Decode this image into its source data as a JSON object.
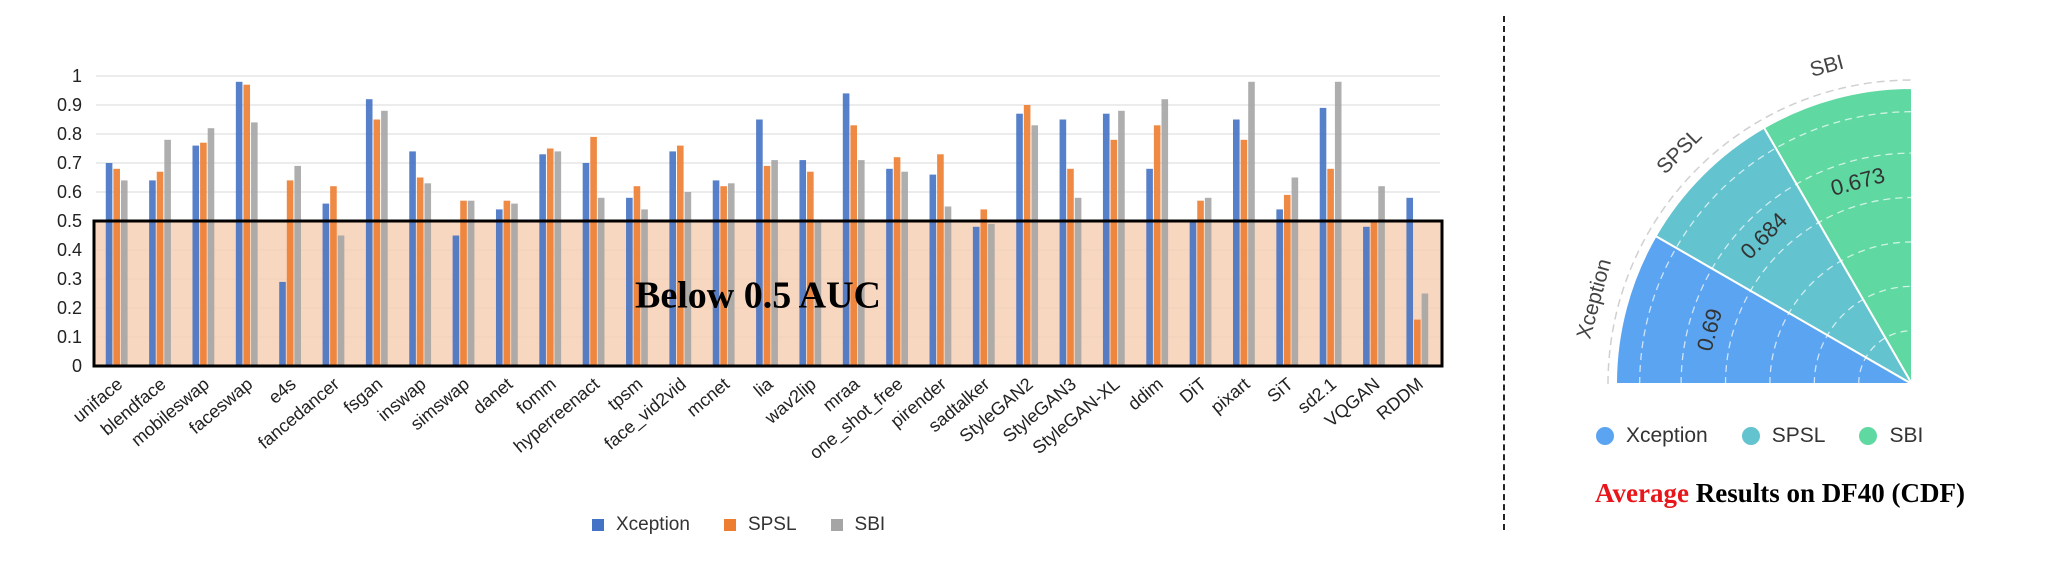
{
  "colors": {
    "Xception": "#4472c4",
    "SPSL": "#ed7d31",
    "SBI": "#a5a5a5",
    "highlight_fill": "#f6cdb0",
    "title_accent": "#e8161b"
  },
  "chart_data": [
    {
      "type": "bar",
      "categories": [
        "uniface",
        "blendface",
        "mobileswap",
        "faceswap",
        "e4s",
        "fancedancer",
        "fsgan",
        "inswap",
        "simswap",
        "danet",
        "fomm",
        "hyperreenact",
        "tpsm",
        "face_vid2vid",
        "mcnet",
        "lia",
        "wav2lip",
        "mraa",
        "one_shot_free",
        "pirender",
        "sadtalker",
        "StyleGAN2",
        "StyleGAN3",
        "StyleGAN-XL",
        "ddim",
        "DiT",
        "pixart",
        "SiT",
        "sd2.1",
        "VQGAN",
        "RDDM"
      ],
      "series": [
        {
          "name": "Xception",
          "color": "#4472c4",
          "values": [
            0.7,
            0.64,
            0.76,
            0.98,
            0.29,
            0.56,
            0.92,
            0.74,
            0.45,
            0.54,
            0.73,
            0.7,
            0.58,
            0.74,
            0.64,
            0.85,
            0.71,
            0.94,
            0.68,
            0.66,
            0.48,
            0.87,
            0.85,
            0.87,
            0.68,
            0.5,
            0.85,
            0.54,
            0.89,
            0.48,
            0.58
          ]
        },
        {
          "name": "SPSL",
          "color": "#ed7d31",
          "values": [
            0.68,
            0.67,
            0.77,
            0.97,
            0.64,
            0.62,
            0.85,
            0.65,
            0.57,
            0.57,
            0.75,
            0.79,
            0.62,
            0.76,
            0.62,
            0.69,
            0.67,
            0.83,
            0.72,
            0.73,
            0.54,
            0.9,
            0.68,
            0.78,
            0.83,
            0.57,
            0.78,
            0.59,
            0.68,
            0.5,
            0.16
          ]
        },
        {
          "name": "SBI",
          "color": "#a5a5a5",
          "values": [
            0.64,
            0.78,
            0.82,
            0.84,
            0.69,
            0.45,
            0.88,
            0.63,
            0.57,
            0.56,
            0.74,
            0.58,
            0.54,
            0.6,
            0.63,
            0.71,
            0.5,
            0.71,
            0.67,
            0.55,
            0.49,
            0.83,
            0.58,
            0.88,
            0.92,
            0.58,
            0.98,
            0.65,
            0.98,
            0.62,
            0.25
          ]
        }
      ],
      "y_ticks": [
        "0",
        "0.1",
        "0.2",
        "0.3",
        "0.4",
        "0.5",
        "0.6",
        "0.7",
        "0.8",
        "0.9",
        "1"
      ],
      "ylim": [
        0,
        1
      ],
      "grid": true,
      "legend_position": "bottom",
      "highlight_region": {
        "y_from": 0,
        "y_to": 0.5,
        "label": "Below 0.5 AUC"
      }
    },
    {
      "type": "polar-bar",
      "title_accent": "Average",
      "title_rest": " Results on DF40 (CDF)",
      "series": [
        {
          "name": "Xception",
          "value": 0.69,
          "label": "0.69",
          "color": "#5ba4f1"
        },
        {
          "name": "SPSL",
          "value": 0.684,
          "label": "0.684",
          "color": "#63c3cf"
        },
        {
          "name": "SBI",
          "value": 0.673,
          "label": "0.673",
          "color": "#5fd8a2"
        }
      ],
      "legend_position": "bottom"
    }
  ]
}
